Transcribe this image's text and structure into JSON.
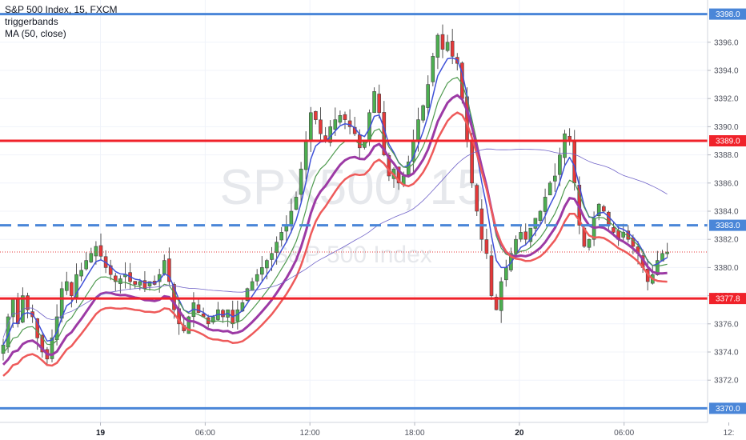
{
  "legend": {
    "symbol": "S&P 500 Index, 15, FXCM",
    "indicator1": "triggerbands",
    "indicator2": "MA (50, close)"
  },
  "watermark": {
    "big": "SPX500, 15",
    "small": "S&P 500 Index"
  },
  "chart_data": {
    "type": "candlestick",
    "y_range": [
      3369,
      3399
    ],
    "y_ticks": [
      "3372.0",
      "3374.0",
      "3376.0",
      "3378.0",
      "3380.0",
      "3382.0",
      "3384.0",
      "3386.0",
      "3388.0",
      "3390.0",
      "3392.0",
      "3394.0",
      "3396.0"
    ],
    "x_ticks": [
      {
        "label": "19",
        "bold": true,
        "pos": 0.142
      },
      {
        "label": "06:00",
        "bold": false,
        "pos": 0.29
      },
      {
        "label": "12:00",
        "bold": false,
        "pos": 0.438
      },
      {
        "label": "18:00",
        "bold": false,
        "pos": 0.586
      },
      {
        "label": "20",
        "bold": true,
        "pos": 0.734
      },
      {
        "label": "06:00",
        "bold": false,
        "pos": 0.882
      },
      {
        "label": "12:",
        "bold": false,
        "pos": 1.03
      }
    ],
    "levels": [
      {
        "label": "3398.0",
        "value": 3398.0,
        "color": "#4a86d8",
        "style": "solid"
      },
      {
        "label": "3389.0",
        "value": 3389.0,
        "color": "#f0222a",
        "style": "solid"
      },
      {
        "label": "3383.0",
        "value": 3383.0,
        "color": "#4a86d8",
        "style": "dashed"
      },
      {
        "label": "3377.8",
        "value": 3377.8,
        "color": "#f0222a",
        "style": "solid"
      },
      {
        "label": "3370.0",
        "value": 3370.0,
        "color": "#4a86d8",
        "style": "solid"
      }
    ],
    "last_price": 3381.1,
    "up_color": "#4caf50",
    "down_color": "#e5393a",
    "close_path": [
      3374.5,
      3376.5,
      3377.8,
      3376.0,
      3378.0,
      3377.0,
      3376.5,
      3375.0,
      3374.0,
      3373.5,
      3375.0,
      3376.5,
      3378.5,
      3379.0,
      3378.0,
      3379.5,
      3379.8,
      3380.5,
      3381.0,
      3381.5,
      3380.8,
      3380.0,
      3379.5,
      3379.0,
      3379.2,
      3379.5,
      3379.0,
      3378.8,
      3379.0,
      3378.5,
      3379.0,
      3378.8,
      3379.5,
      3380.5,
      3379.0,
      3377.0,
      3376.0,
      3375.5,
      3376.5,
      3377.5,
      3376.8,
      3376.5,
      3376.0,
      3376.5,
      3377.0,
      3376.5,
      3377.0,
      3376.0,
      3377.0,
      3377.5,
      3378.5,
      3379.0,
      3379.5,
      3380.0,
      3380.5,
      3381.0,
      3381.8,
      3382.5,
      3383.0,
      3384.0,
      3385.0,
      3387.0,
      3389.0,
      3391.0,
      3390.5,
      3389.5,
      3389.0,
      3390.0,
      3390.5,
      3390.8,
      3390.5,
      3390.0,
      3389.5,
      3388.5,
      3389.0,
      3391.0,
      3392.5,
      3391.0,
      3388.0,
      3386.5,
      3387.0,
      3386.0,
      3386.5,
      3387.5,
      3389.0,
      3390.5,
      3391.5,
      3393.0,
      3395.0,
      3396.5,
      3395.5,
      3396.0,
      3395.0,
      3394.5,
      3392.0,
      3389.0,
      3386.0,
      3384.0,
      3382.0,
      3381.0,
      3378.0,
      3377.0,
      3379.0,
      3380.0,
      3381.0,
      3382.0,
      3382.5,
      3382.0,
      3382.8,
      3383.5,
      3384.0,
      3385.0,
      3386.0,
      3386.5,
      3388.0,
      3389.5,
      3389.0,
      3386.0,
      3383.0,
      3381.5,
      3382.0,
      3383.5,
      3384.5,
      3384.0,
      3383.0,
      3382.5,
      3382.0,
      3382.5,
      3382.0,
      3381.5,
      3381.0,
      3380.0,
      3379.0,
      3379.5,
      3380.5,
      3381.0,
      3381.1
    ]
  }
}
